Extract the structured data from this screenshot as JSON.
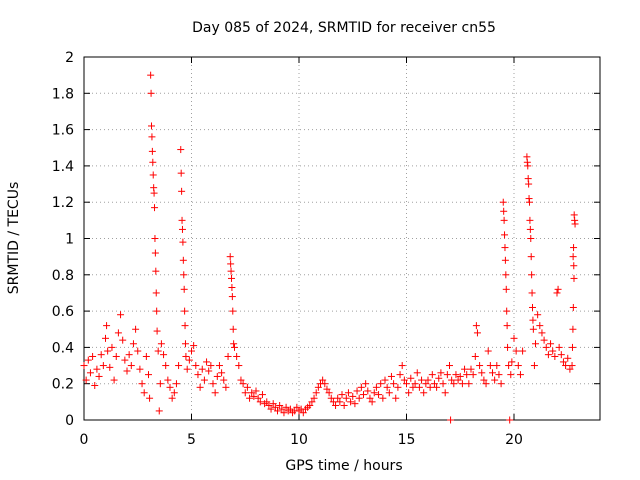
{
  "chart_data": {
    "type": "scatter",
    "title": "Day 085 of 2024, SRMTID for receiver cn55",
    "xlabel": "GPS time / hours",
    "ylabel": "SRMTID / TECUs",
    "xlim": [
      0,
      24
    ],
    "ylim": [
      0,
      2
    ],
    "xticks": [
      0,
      5,
      10,
      15,
      20
    ],
    "xtick_labels": [
      "0",
      "5",
      "10",
      "15",
      "20"
    ],
    "yticks": [
      0,
      0.2,
      0.4,
      0.6,
      0.8,
      1,
      1.2,
      1.4,
      1.6,
      1.8,
      2
    ],
    "ytick_labels": [
      "0",
      "0.2",
      "0.4",
      "0.6",
      "0.8",
      "1",
      "1.2",
      "1.4",
      "1.6",
      "1.8",
      "2"
    ],
    "grid": true,
    "marker": "+",
    "color": "#ff0000",
    "series": [
      {
        "name": "cn55",
        "points": [
          [
            0.0,
            0.3
          ],
          [
            0.1,
            0.22
          ],
          [
            0.2,
            0.33
          ],
          [
            0.3,
            0.26
          ],
          [
            0.4,
            0.35
          ],
          [
            0.5,
            0.19
          ],
          [
            0.6,
            0.28
          ],
          [
            0.7,
            0.24
          ],
          [
            0.8,
            0.36
          ],
          [
            0.9,
            0.3
          ],
          [
            1.0,
            0.45
          ],
          [
            1.05,
            0.52
          ],
          [
            1.1,
            0.38
          ],
          [
            1.2,
            0.29
          ],
          [
            1.3,
            0.4
          ],
          [
            1.4,
            0.22
          ],
          [
            1.5,
            0.35
          ],
          [
            1.6,
            0.48
          ],
          [
            1.7,
            0.58
          ],
          [
            1.8,
            0.44
          ],
          [
            1.9,
            0.33
          ],
          [
            2.0,
            0.27
          ],
          [
            2.1,
            0.36
          ],
          [
            2.2,
            0.3
          ],
          [
            2.3,
            0.42
          ],
          [
            2.4,
            0.5
          ],
          [
            2.5,
            0.38
          ],
          [
            2.6,
            0.28
          ],
          [
            2.7,
            0.2
          ],
          [
            2.8,
            0.15
          ],
          [
            2.9,
            0.35
          ],
          [
            3.0,
            0.25
          ],
          [
            3.05,
            0.12
          ],
          [
            3.1,
            1.9
          ],
          [
            3.12,
            1.8
          ],
          [
            3.14,
            1.62
          ],
          [
            3.16,
            1.56
          ],
          [
            3.18,
            1.48
          ],
          [
            3.2,
            1.42
          ],
          [
            3.22,
            1.35
          ],
          [
            3.24,
            1.28
          ],
          [
            3.26,
            1.25
          ],
          [
            3.28,
            1.17
          ],
          [
            3.3,
            1.0
          ],
          [
            3.32,
            0.92
          ],
          [
            3.34,
            0.82
          ],
          [
            3.36,
            0.7
          ],
          [
            3.38,
            0.6
          ],
          [
            3.4,
            0.49
          ],
          [
            3.45,
            0.38
          ],
          [
            3.5,
            0.05
          ],
          [
            3.55,
            0.2
          ],
          [
            3.6,
            0.42
          ],
          [
            3.7,
            0.36
          ],
          [
            3.8,
            0.3
          ],
          [
            3.9,
            0.22
          ],
          [
            4.0,
            0.18
          ],
          [
            4.1,
            0.12
          ],
          [
            4.2,
            0.15
          ],
          [
            4.3,
            0.2
          ],
          [
            4.4,
            0.3
          ],
          [
            4.5,
            1.49
          ],
          [
            4.52,
            1.36
          ],
          [
            4.54,
            1.26
          ],
          [
            4.56,
            1.1
          ],
          [
            4.58,
            1.05
          ],
          [
            4.6,
            0.98
          ],
          [
            4.62,
            0.88
          ],
          [
            4.64,
            0.8
          ],
          [
            4.66,
            0.72
          ],
          [
            4.68,
            0.6
          ],
          [
            4.7,
            0.52
          ],
          [
            4.72,
            0.42
          ],
          [
            4.74,
            0.35
          ],
          [
            4.8,
            0.28
          ],
          [
            4.9,
            0.33
          ],
          [
            5.0,
            0.38
          ],
          [
            5.1,
            0.41
          ],
          [
            5.2,
            0.3
          ],
          [
            5.3,
            0.25
          ],
          [
            5.4,
            0.18
          ],
          [
            5.5,
            0.28
          ],
          [
            5.6,
            0.22
          ],
          [
            5.7,
            0.32
          ],
          [
            5.8,
            0.27
          ],
          [
            5.9,
            0.3
          ],
          [
            6.0,
            0.2
          ],
          [
            6.1,
            0.15
          ],
          [
            6.2,
            0.24
          ],
          [
            6.3,
            0.3
          ],
          [
            6.4,
            0.26
          ],
          [
            6.5,
            0.22
          ],
          [
            6.6,
            0.18
          ],
          [
            6.7,
            0.35
          ],
          [
            6.8,
            0.9
          ],
          [
            6.82,
            0.86
          ],
          [
            6.84,
            0.82
          ],
          [
            6.86,
            0.78
          ],
          [
            6.88,
            0.73
          ],
          [
            6.9,
            0.68
          ],
          [
            6.92,
            0.6
          ],
          [
            6.94,
            0.5
          ],
          [
            6.96,
            0.42
          ],
          [
            7.0,
            0.4
          ],
          [
            7.1,
            0.35
          ],
          [
            7.2,
            0.3
          ],
          [
            7.3,
            0.22
          ],
          [
            7.4,
            0.2
          ],
          [
            7.5,
            0.15
          ],
          [
            7.6,
            0.18
          ],
          [
            7.7,
            0.12
          ],
          [
            7.8,
            0.15
          ],
          [
            7.9,
            0.13
          ],
          [
            8.0,
            0.16
          ],
          [
            8.1,
            0.12
          ],
          [
            8.2,
            0.1
          ],
          [
            8.3,
            0.14
          ],
          [
            8.4,
            0.09
          ],
          [
            8.5,
            0.1
          ],
          [
            8.6,
            0.08
          ],
          [
            8.7,
            0.06
          ],
          [
            8.8,
            0.09
          ],
          [
            8.9,
            0.07
          ],
          [
            9.0,
            0.05
          ],
          [
            9.1,
            0.08
          ],
          [
            9.2,
            0.06
          ],
          [
            9.3,
            0.04
          ],
          [
            9.4,
            0.07
          ],
          [
            9.5,
            0.05
          ],
          [
            9.6,
            0.06
          ],
          [
            9.7,
            0.04
          ],
          [
            9.8,
            0.05
          ],
          [
            9.9,
            0.07
          ],
          [
            10.0,
            0.05
          ],
          [
            10.1,
            0.06
          ],
          [
            10.2,
            0.04
          ],
          [
            10.3,
            0.06
          ],
          [
            10.4,
            0.07
          ],
          [
            10.5,
            0.08
          ],
          [
            10.6,
            0.1
          ],
          [
            10.7,
            0.12
          ],
          [
            10.8,
            0.15
          ],
          [
            10.9,
            0.18
          ],
          [
            11.0,
            0.2
          ],
          [
            11.1,
            0.22
          ],
          [
            11.2,
            0.2
          ],
          [
            11.3,
            0.17
          ],
          [
            11.4,
            0.15
          ],
          [
            11.5,
            0.12
          ],
          [
            11.6,
            0.1
          ],
          [
            11.7,
            0.08
          ],
          [
            11.8,
            0.12
          ],
          [
            11.9,
            0.1
          ],
          [
            12.0,
            0.14
          ],
          [
            12.1,
            0.08
          ],
          [
            12.2,
            0.12
          ],
          [
            12.3,
            0.15
          ],
          [
            12.4,
            0.1
          ],
          [
            12.5,
            0.13
          ],
          [
            12.6,
            0.09
          ],
          [
            12.7,
            0.16
          ],
          [
            12.8,
            0.12
          ],
          [
            12.9,
            0.18
          ],
          [
            13.0,
            0.14
          ],
          [
            13.1,
            0.2
          ],
          [
            13.2,
            0.16
          ],
          [
            13.3,
            0.12
          ],
          [
            13.4,
            0.1
          ],
          [
            13.5,
            0.15
          ],
          [
            13.6,
            0.18
          ],
          [
            13.7,
            0.14
          ],
          [
            13.8,
            0.2
          ],
          [
            13.9,
            0.12
          ],
          [
            14.0,
            0.22
          ],
          [
            14.1,
            0.18
          ],
          [
            14.2,
            0.15
          ],
          [
            14.3,
            0.24
          ],
          [
            14.4,
            0.2
          ],
          [
            14.5,
            0.12
          ],
          [
            14.6,
            0.18
          ],
          [
            14.7,
            0.25
          ],
          [
            14.8,
            0.3
          ],
          [
            14.9,
            0.22
          ],
          [
            15.0,
            0.2
          ],
          [
            15.1,
            0.15
          ],
          [
            15.2,
            0.23
          ],
          [
            15.3,
            0.18
          ],
          [
            15.4,
            0.2
          ],
          [
            15.5,
            0.26
          ],
          [
            15.6,
            0.18
          ],
          [
            15.7,
            0.22
          ],
          [
            15.8,
            0.15
          ],
          [
            15.9,
            0.2
          ],
          [
            16.0,
            0.22
          ],
          [
            16.1,
            0.18
          ],
          [
            16.2,
            0.25
          ],
          [
            16.3,
            0.2
          ],
          [
            16.4,
            0.18
          ],
          [
            16.5,
            0.23
          ],
          [
            16.6,
            0.26
          ],
          [
            16.7,
            0.2
          ],
          [
            16.8,
            0.15
          ],
          [
            16.9,
            0.25
          ],
          [
            17.0,
            0.3
          ],
          [
            17.05,
            0.0
          ],
          [
            17.1,
            0.22
          ],
          [
            17.2,
            0.2
          ],
          [
            17.3,
            0.25
          ],
          [
            17.4,
            0.22
          ],
          [
            17.5,
            0.24
          ],
          [
            17.6,
            0.2
          ],
          [
            17.7,
            0.28
          ],
          [
            17.8,
            0.25
          ],
          [
            17.9,
            0.2
          ],
          [
            18.0,
            0.28
          ],
          [
            18.1,
            0.25
          ],
          [
            18.2,
            0.35
          ],
          [
            18.25,
            0.52
          ],
          [
            18.3,
            0.48
          ],
          [
            18.4,
            0.3
          ],
          [
            18.5,
            0.26
          ],
          [
            18.6,
            0.22
          ],
          [
            18.7,
            0.2
          ],
          [
            18.8,
            0.38
          ],
          [
            18.9,
            0.3
          ],
          [
            19.0,
            0.26
          ],
          [
            19.1,
            0.22
          ],
          [
            19.2,
            0.3
          ],
          [
            19.3,
            0.25
          ],
          [
            19.4,
            0.2
          ],
          [
            19.5,
            1.2
          ],
          [
            19.52,
            1.15
          ],
          [
            19.54,
            1.1
          ],
          [
            19.56,
            1.02
          ],
          [
            19.58,
            0.95
          ],
          [
            19.6,
            0.88
          ],
          [
            19.62,
            0.8
          ],
          [
            19.64,
            0.72
          ],
          [
            19.66,
            0.6
          ],
          [
            19.68,
            0.52
          ],
          [
            19.7,
            0.4
          ],
          [
            19.75,
            0.3
          ],
          [
            19.8,
            0.0
          ],
          [
            19.85,
            0.25
          ],
          [
            19.9,
            0.32
          ],
          [
            20.0,
            0.45
          ],
          [
            20.1,
            0.38
          ],
          [
            20.2,
            0.3
          ],
          [
            20.3,
            0.25
          ],
          [
            20.4,
            0.38
          ],
          [
            20.6,
            1.45
          ],
          [
            20.62,
            1.42
          ],
          [
            20.64,
            1.4
          ],
          [
            20.66,
            1.33
          ],
          [
            20.68,
            1.3
          ],
          [
            20.7,
            1.22
          ],
          [
            20.72,
            1.2
          ],
          [
            20.74,
            1.1
          ],
          [
            20.76,
            1.05
          ],
          [
            20.78,
            1.0
          ],
          [
            20.8,
            0.9
          ],
          [
            20.82,
            0.8
          ],
          [
            20.84,
            0.7
          ],
          [
            20.86,
            0.62
          ],
          [
            20.88,
            0.55
          ],
          [
            20.9,
            0.5
          ],
          [
            20.95,
            0.3
          ],
          [
            21.0,
            0.42
          ],
          [
            21.1,
            0.58
          ],
          [
            21.2,
            0.52
          ],
          [
            21.3,
            0.48
          ],
          [
            21.4,
            0.44
          ],
          [
            21.5,
            0.4
          ],
          [
            21.6,
            0.36
          ],
          [
            21.7,
            0.42
          ],
          [
            21.8,
            0.38
          ],
          [
            21.9,
            0.35
          ],
          [
            22.0,
            0.7
          ],
          [
            22.05,
            0.72
          ],
          [
            22.1,
            0.4
          ],
          [
            22.2,
            0.36
          ],
          [
            22.3,
            0.32
          ],
          [
            22.4,
            0.3
          ],
          [
            22.5,
            0.34
          ],
          [
            22.6,
            0.28
          ],
          [
            22.7,
            0.3
          ],
          [
            22.75,
            0.9
          ],
          [
            22.77,
            0.95
          ],
          [
            22.8,
            1.13
          ],
          [
            22.82,
            1.1
          ],
          [
            22.84,
            1.08
          ],
          [
            22.78,
            0.85
          ],
          [
            22.79,
            0.78
          ],
          [
            22.76,
            0.62
          ],
          [
            22.74,
            0.5
          ],
          [
            22.72,
            0.4
          ]
        ]
      }
    ]
  }
}
